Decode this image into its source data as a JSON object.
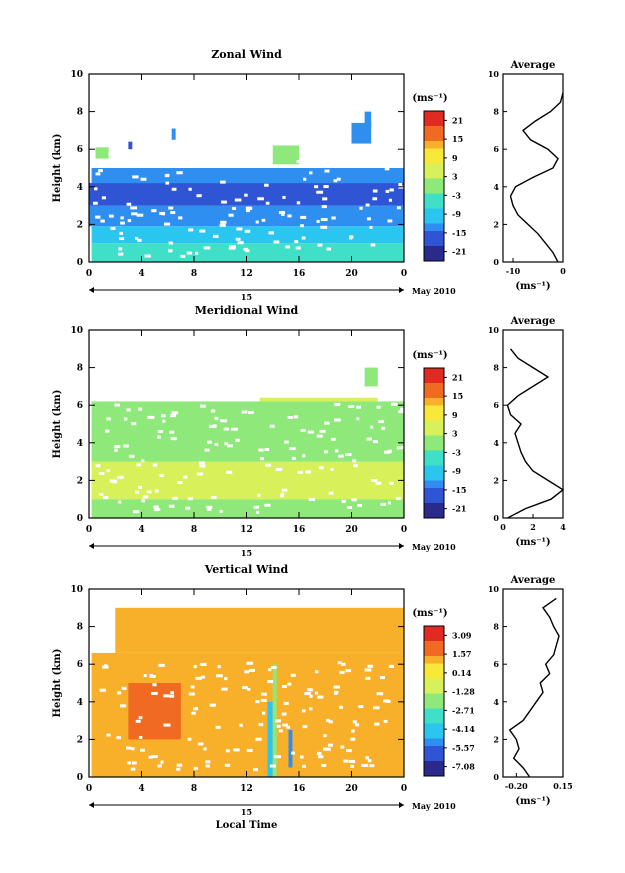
{
  "chart_data": [
    {
      "type": "heatmap",
      "title": "Zonal Wind",
      "xlabel": "",
      "ylabel": "Height (km)",
      "xlim": [
        0,
        24
      ],
      "ylim": [
        0,
        10
      ],
      "x_ticks": [
        "0",
        "4",
        "8",
        "12",
        "16",
        "20",
        "0"
      ],
      "y_ticks": [
        "0",
        "2",
        "4",
        "6",
        "8",
        "10"
      ],
      "date_label": "15",
      "month_label": "May 2010",
      "colorbar": {
        "unit": "(ms⁻¹)",
        "labels": [
          "21",
          "15",
          "9",
          "3",
          "-3",
          "-9",
          "-15",
          "-21"
        ],
        "range": [
          -24,
          24
        ]
      },
      "cells": [
        [
          0.2,
          0.0,
          24.0,
          1.0,
          -6
        ],
        [
          0.2,
          1.0,
          24.0,
          1.9,
          -9
        ],
        [
          0.0,
          1.9,
          24.0,
          3.0,
          -13
        ],
        [
          0.0,
          3.0,
          24.0,
          4.2,
          -17
        ],
        [
          0.2,
          4.2,
          24.0,
          5.0,
          -15
        ],
        [
          0.5,
          5.5,
          1.5,
          6.1,
          -2
        ],
        [
          3.0,
          6.0,
          3.3,
          6.4,
          -16
        ],
        [
          6.3,
          6.5,
          6.6,
          7.1,
          -13
        ],
        [
          14.0,
          5.2,
          16.0,
          6.2,
          -1
        ],
        [
          20.0,
          6.3,
          21.5,
          7.4,
          -12
        ],
        [
          21.0,
          7.2,
          21.5,
          8.0,
          -15
        ]
      ],
      "average": {
        "title": "Average",
        "xlabel": "(ms⁻¹)",
        "xlim": [
          -12,
          0
        ],
        "x_ticks": [
          "-10",
          "0"
        ],
        "profile": [
          [
            -1.0,
            0.0
          ],
          [
            -2.0,
            0.5
          ],
          [
            -3.5,
            1.0
          ],
          [
            -5.0,
            1.5
          ],
          [
            -7.0,
            2.0
          ],
          [
            -9.0,
            2.5
          ],
          [
            -10.0,
            3.0
          ],
          [
            -10.5,
            3.5
          ],
          [
            -9.5,
            4.0
          ],
          [
            -6.0,
            4.5
          ],
          [
            -2.0,
            5.0
          ],
          [
            -1.0,
            5.5
          ],
          [
            -3.0,
            6.0
          ],
          [
            -6.5,
            6.5
          ],
          [
            -8.0,
            7.0
          ],
          [
            -5.5,
            7.5
          ],
          [
            -2.5,
            8.0
          ],
          [
            -0.5,
            8.5
          ],
          [
            0,
            9.0
          ]
        ]
      }
    },
    {
      "type": "heatmap",
      "title": "Meridional Wind",
      "xlabel": "",
      "ylabel": "Height (km)",
      "xlim": [
        0,
        24
      ],
      "ylim": [
        0,
        10
      ],
      "x_ticks": [
        "0",
        "4",
        "8",
        "12",
        "16",
        "20",
        "0"
      ],
      "y_ticks": [
        "0",
        "2",
        "4",
        "6",
        "8",
        "10"
      ],
      "date_label": "15",
      "month_label": "May 2010",
      "colorbar": {
        "unit": "(ms⁻¹)",
        "labels": [
          "21",
          "15",
          "9",
          "3",
          "-3",
          "-9",
          "-15",
          "-21"
        ],
        "range": [
          -24,
          24
        ]
      },
      "cells": [
        [
          0.2,
          0.0,
          24.0,
          1.0,
          1
        ],
        [
          0.2,
          1.0,
          24.0,
          3.0,
          3
        ],
        [
          0.2,
          3.0,
          24.0,
          6.2,
          2
        ],
        [
          13.0,
          6.2,
          22.0,
          6.4,
          3
        ],
        [
          21.0,
          7.0,
          22.0,
          8.0,
          2
        ]
      ],
      "average": {
        "title": "Average",
        "xlabel": "(ms⁻¹)",
        "xlim": [
          0,
          4
        ],
        "x_ticks": [
          "0",
          "2",
          "4"
        ],
        "profile": [
          [
            0.3,
            0.0
          ],
          [
            1.5,
            0.5
          ],
          [
            3.2,
            1.0
          ],
          [
            4.0,
            1.5
          ],
          [
            3.0,
            2.0
          ],
          [
            2.0,
            2.5
          ],
          [
            1.5,
            3.0
          ],
          [
            1.2,
            3.5
          ],
          [
            1.0,
            4.0
          ],
          [
            0.8,
            4.5
          ],
          [
            1.2,
            5.0
          ],
          [
            0.5,
            5.5
          ],
          [
            0.3,
            6.0
          ],
          [
            1.0,
            6.5
          ],
          [
            2.0,
            7.0
          ],
          [
            3.0,
            7.5
          ],
          [
            2.0,
            8.0
          ],
          [
            1.0,
            8.5
          ],
          [
            0.5,
            9.0
          ]
        ]
      }
    },
    {
      "type": "heatmap",
      "title": "Vertical Wind",
      "xlabel": "Local Time",
      "ylabel": "Height (km)",
      "xlim": [
        0,
        24
      ],
      "ylim": [
        0,
        10
      ],
      "x_ticks": [
        "0",
        "4",
        "8",
        "12",
        "16",
        "20",
        "0"
      ],
      "y_ticks": [
        "0",
        "2",
        "4",
        "6",
        "8",
        "10"
      ],
      "date_label": "15",
      "month_label": "May 2010",
      "colorbar": {
        "unit": "(ms⁻¹)",
        "labels": [
          "3.09",
          "1.57",
          "0.14",
          "-1.28",
          "-2.71",
          "-4.14",
          "-5.57",
          "-7.08"
        ],
        "range": [
          -8.5,
          4.5
        ]
      },
      "cells": [
        [
          0.2,
          0.0,
          24.0,
          6.6,
          1.6
        ],
        [
          3.0,
          2.0,
          7.0,
          5.0,
          3.0
        ],
        [
          2.0,
          6.6,
          24.0,
          9.0,
          2.0
        ],
        [
          13.6,
          0.0,
          14.0,
          4.0,
          -4.0
        ],
        [
          14.0,
          0.0,
          14.3,
          6.0,
          -2.0
        ],
        [
          15.2,
          0.5,
          15.5,
          2.5,
          -5.0
        ]
      ],
      "average": {
        "title": "Average",
        "xlabel": "(ms⁻¹)",
        "xlim": [
          -0.3,
          0.15
        ],
        "x_ticks": [
          "-0.20",
          "0.15"
        ],
        "profile": [
          [
            -0.1,
            0.0
          ],
          [
            -0.15,
            0.5
          ],
          [
            -0.22,
            1.0
          ],
          [
            -0.18,
            1.5
          ],
          [
            -0.2,
            2.0
          ],
          [
            -0.25,
            2.5
          ],
          [
            -0.15,
            3.0
          ],
          [
            -0.1,
            3.5
          ],
          [
            -0.05,
            4.0
          ],
          [
            0.0,
            4.5
          ],
          [
            -0.02,
            5.0
          ],
          [
            0.05,
            5.5
          ],
          [
            0.02,
            6.0
          ],
          [
            0.08,
            6.5
          ],
          [
            0.1,
            7.0
          ],
          [
            0.12,
            7.5
          ],
          [
            0.08,
            8.0
          ],
          [
            0.05,
            8.5
          ],
          [
            0.0,
            9.0
          ],
          [
            0.1,
            9.5
          ]
        ]
      }
    }
  ]
}
